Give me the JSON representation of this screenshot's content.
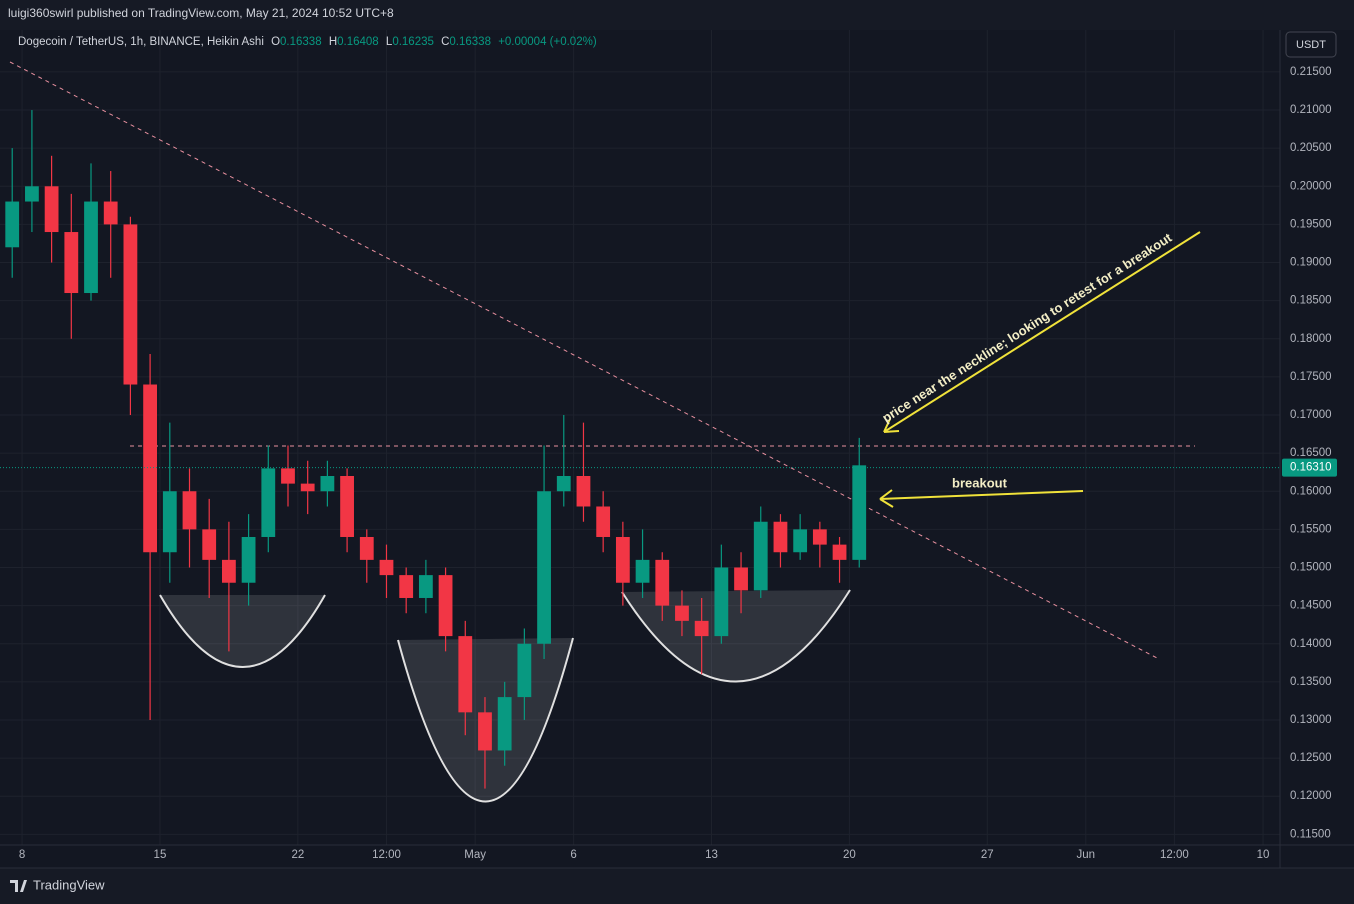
{
  "header": {
    "publisher": "luigi360swirl published on TradingView.com, May 21, 2024 10:52 UTC+8",
    "currency_button": "USDT",
    "footer": "TradingView"
  },
  "legend": {
    "symbol": "Dogecoin / TetherUS, 1h, BINANCE, Heikin Ashi",
    "fields": [
      {
        "label": "O",
        "value": "0.16338"
      },
      {
        "label": "H",
        "value": "0.16408"
      },
      {
        "label": "L",
        "value": "0.16235"
      },
      {
        "label": "C",
        "value": "0.16338"
      }
    ],
    "change": "+0.00004 (+0.02%)"
  },
  "chart_data": {
    "type": "candlestick",
    "x": [
      -0.5,
      0.5,
      1.5,
      2.5,
      3.5,
      4.5,
      5.5,
      6.5,
      7.5,
      8.5,
      9.5,
      10.5,
      11.5,
      12.5,
      13.5,
      14.5,
      15.5,
      16.5,
      17.5,
      18.5,
      19.5,
      20.5,
      21.5,
      22.5,
      23.5,
      24.5,
      25.5,
      26.5,
      27.5,
      28.5,
      29.5,
      30.5,
      31.5,
      32.5,
      33.5,
      34.5,
      35.5,
      36.5,
      37.5,
      38.5,
      39.5,
      40.5,
      41.5,
      42.5
    ],
    "open": [
      0.192,
      0.198,
      0.2,
      0.194,
      0.186,
      0.198,
      0.195,
      0.174,
      0.152,
      0.16,
      0.155,
      0.151,
      0.148,
      0.154,
      0.163,
      0.161,
      0.16,
      0.162,
      0.154,
      0.151,
      0.149,
      0.146,
      0.149,
      0.141,
      0.131,
      0.126,
      0.133,
      0.14,
      0.16,
      0.162,
      0.158,
      0.154,
      0.148,
      0.151,
      0.145,
      0.143,
      0.141,
      0.15,
      0.147,
      0.156,
      0.152,
      0.155,
      0.153,
      0.151
    ],
    "high": [
      0.205,
      0.21,
      0.204,
      0.199,
      0.203,
      0.202,
      0.196,
      0.178,
      0.169,
      0.163,
      0.159,
      0.156,
      0.157,
      0.166,
      0.166,
      0.164,
      0.164,
      0.163,
      0.155,
      0.153,
      0.15,
      0.151,
      0.15,
      0.143,
      0.133,
      0.135,
      0.142,
      0.166,
      0.17,
      0.169,
      0.16,
      0.156,
      0.155,
      0.152,
      0.147,
      0.146,
      0.153,
      0.152,
      0.158,
      0.157,
      0.157,
      0.156,
      0.154,
      0.167
    ],
    "low": [
      0.188,
      0.194,
      0.19,
      0.18,
      0.185,
      0.188,
      0.17,
      0.13,
      0.148,
      0.15,
      0.146,
      0.139,
      0.145,
      0.152,
      0.158,
      0.157,
      0.158,
      0.152,
      0.148,
      0.146,
      0.144,
      0.144,
      0.139,
      0.128,
      0.121,
      0.124,
      0.13,
      0.138,
      0.158,
      0.156,
      0.152,
      0.145,
      0.146,
      0.143,
      0.141,
      0.136,
      0.14,
      0.144,
      0.146,
      0.15,
      0.151,
      0.15,
      0.148,
      0.15
    ],
    "close": [
      0.198,
      0.2,
      0.194,
      0.186,
      0.198,
      0.195,
      0.174,
      0.152,
      0.16,
      0.155,
      0.151,
      0.148,
      0.154,
      0.163,
      0.161,
      0.16,
      0.162,
      0.154,
      0.151,
      0.149,
      0.146,
      0.149,
      0.141,
      0.131,
      0.126,
      0.133,
      0.14,
      0.16,
      0.162,
      0.158,
      0.154,
      0.148,
      0.151,
      0.145,
      0.143,
      0.141,
      0.15,
      0.147,
      0.156,
      0.152,
      0.155,
      0.153,
      0.151,
      0.1634
    ],
    "up_color": "#089981",
    "down_color": "#f23645",
    "xlim": [
      -1.12,
      63.86
    ],
    "xticks": [
      {
        "value": 0,
        "label": "8"
      },
      {
        "value": 7,
        "label": "15"
      },
      {
        "value": 14,
        "label": "22"
      },
      {
        "value": 18.5,
        "label": "12:00"
      },
      {
        "value": 23,
        "label": "May"
      },
      {
        "value": 28,
        "label": "6"
      },
      {
        "value": 35,
        "label": "13"
      },
      {
        "value": 42,
        "label": "20"
      },
      {
        "value": 49,
        "label": "27"
      },
      {
        "value": 54,
        "label": "Jun"
      },
      {
        "value": 58.5,
        "label": "12:00"
      },
      {
        "value": 63,
        "label": "10"
      }
    ],
    "ylim": [
      0.1136,
      0.2205
    ],
    "yticks": [
      {
        "value": 0.115,
        "label": "0.11500"
      },
      {
        "value": 0.12,
        "label": "0.12000"
      },
      {
        "value": 0.125,
        "label": "0.12500"
      },
      {
        "value": 0.13,
        "label": "0.13000"
      },
      {
        "value": 0.135,
        "label": "0.13500"
      },
      {
        "value": 0.14,
        "label": "0.14000"
      },
      {
        "value": 0.145,
        "label": "0.14500"
      },
      {
        "value": 0.15,
        "label": "0.15000"
      },
      {
        "value": 0.155,
        "label": "0.15500"
      },
      {
        "value": 0.16,
        "label": "0.16000"
      },
      {
        "value": 0.165,
        "label": "0.16500"
      },
      {
        "value": 0.17,
        "label": "0.17000"
      },
      {
        "value": 0.175,
        "label": "0.17500"
      },
      {
        "value": 0.18,
        "label": "0.18000"
      },
      {
        "value": 0.185,
        "label": "0.18500"
      },
      {
        "value": 0.19,
        "label": "0.19000"
      },
      {
        "value": 0.195,
        "label": "0.19500"
      },
      {
        "value": 0.2,
        "label": "0.20000"
      },
      {
        "value": 0.205,
        "label": "0.20500"
      },
      {
        "value": 0.21,
        "label": "0.21000"
      },
      {
        "value": 0.215,
        "label": "0.21500"
      }
    ],
    "last_price": {
      "value": 0.1631,
      "label": "0.16310"
    },
    "grid": true,
    "annotations": [
      "price near the neckline; looking to retest for a breakout",
      "breakout"
    ]
  }
}
